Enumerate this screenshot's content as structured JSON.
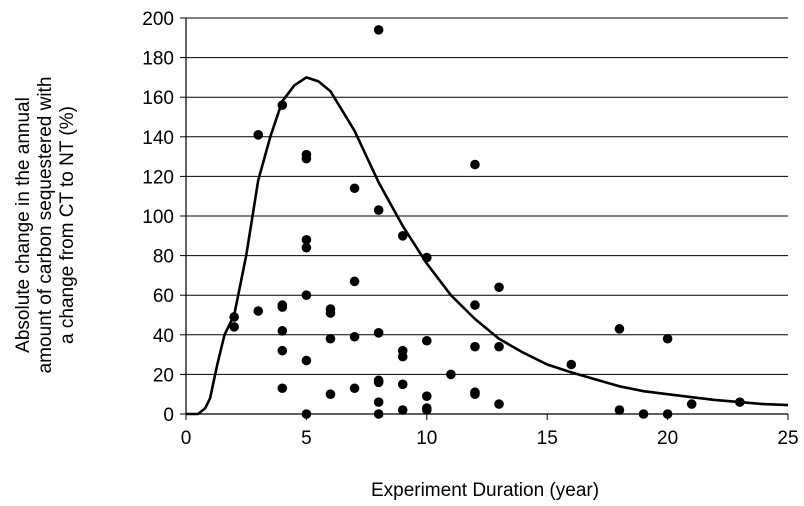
{
  "chart_data": {
    "type": "scatter",
    "title": "",
    "xlabel": "Experiment Duration (year)",
    "ylabel_lines": [
      "Absolute change in the annual",
      "amount of carbon sequestered with",
      "a change from CT to NT (%)"
    ],
    "xlim": [
      0,
      25
    ],
    "ylim": [
      0,
      200
    ],
    "xticks": [
      0,
      5,
      10,
      15,
      20,
      25
    ],
    "yticks": [
      0,
      20,
      40,
      60,
      80,
      100,
      120,
      140,
      160,
      180,
      200
    ],
    "grid": "horizontal",
    "legend": "none",
    "colors": {
      "points": "#000000",
      "curve": "#000000",
      "grid": "#000000"
    },
    "series": [
      {
        "type": "scatter",
        "points": [
          [
            2,
            49
          ],
          [
            2,
            44
          ],
          [
            3,
            141
          ],
          [
            3,
            52
          ],
          [
            4,
            156
          ],
          [
            4,
            55
          ],
          [
            4,
            54
          ],
          [
            4,
            42
          ],
          [
            4,
            32
          ],
          [
            4,
            13
          ],
          [
            5,
            131
          ],
          [
            5,
            129
          ],
          [
            5,
            88
          ],
          [
            5,
            84
          ],
          [
            5,
            60
          ],
          [
            5,
            27
          ],
          [
            5,
            0
          ],
          [
            6,
            53
          ],
          [
            6,
            51
          ],
          [
            6,
            38
          ],
          [
            6,
            10
          ],
          [
            7,
            114
          ],
          [
            7,
            67
          ],
          [
            7,
            39
          ],
          [
            7,
            13
          ],
          [
            8,
            194
          ],
          [
            8,
            103
          ],
          [
            8,
            41
          ],
          [
            8,
            17
          ],
          [
            8,
            16
          ],
          [
            8,
            6
          ],
          [
            8,
            0
          ],
          [
            9,
            90
          ],
          [
            9,
            32
          ],
          [
            9,
            29
          ],
          [
            9,
            15
          ],
          [
            9,
            2
          ],
          [
            10,
            79
          ],
          [
            10,
            37
          ],
          [
            10,
            9
          ],
          [
            10,
            3
          ],
          [
            10,
            2
          ],
          [
            11,
            20
          ],
          [
            12,
            126
          ],
          [
            12,
            55
          ],
          [
            12,
            34
          ],
          [
            12,
            11
          ],
          [
            12,
            10
          ],
          [
            13,
            64
          ],
          [
            13,
            34
          ],
          [
            13,
            5
          ],
          [
            16,
            25
          ],
          [
            18,
            43
          ],
          [
            18,
            2
          ],
          [
            19,
            0
          ],
          [
            20,
            38
          ],
          [
            20,
            0
          ],
          [
            21,
            5
          ],
          [
            23,
            6
          ]
        ]
      },
      {
        "type": "line",
        "points": [
          [
            0,
            0
          ],
          [
            0.5,
            0
          ],
          [
            0.8,
            3
          ],
          [
            1,
            8
          ],
          [
            1.3,
            25
          ],
          [
            1.6,
            40
          ],
          [
            2,
            50
          ],
          [
            2.5,
            80
          ],
          [
            3,
            118
          ],
          [
            3.5,
            140
          ],
          [
            4,
            158
          ],
          [
            4.5,
            166
          ],
          [
            5,
            170
          ],
          [
            5.5,
            168
          ],
          [
            6,
            163
          ],
          [
            7,
            143
          ],
          [
            8,
            117
          ],
          [
            9,
            95
          ],
          [
            10,
            76
          ],
          [
            11,
            60
          ],
          [
            12,
            48
          ],
          [
            13,
            38
          ],
          [
            14,
            31
          ],
          [
            15,
            25
          ],
          [
            16,
            21
          ],
          [
            17,
            17.5
          ],
          [
            18,
            14
          ],
          [
            19,
            11.5
          ],
          [
            20,
            10
          ],
          [
            21,
            8.5
          ],
          [
            22,
            7
          ],
          [
            23,
            6
          ],
          [
            24,
            5
          ],
          [
            25,
            4.5
          ]
        ]
      }
    ]
  }
}
